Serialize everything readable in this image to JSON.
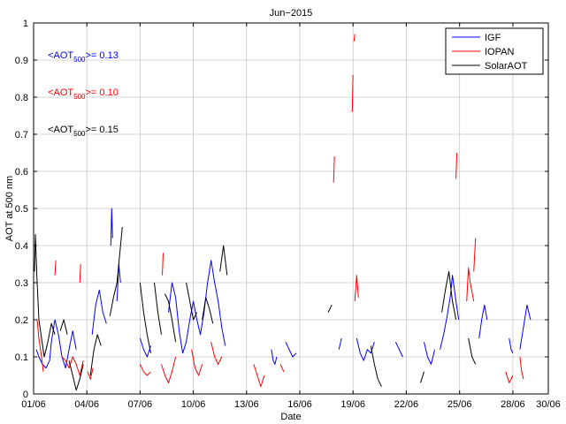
{
  "chart_data": {
    "type": "line",
    "title": "Jun−2015",
    "xlabel": "Date",
    "ylabel": "AOT at 500 nm",
    "xlim": [
      1,
      30
    ],
    "ylim": [
      0,
      1
    ],
    "grid": true,
    "legend_position": "top-right",
    "x_tick_values": [
      1,
      4,
      7,
      10,
      13,
      16,
      19,
      22,
      25,
      28,
      30
    ],
    "x_tick_labels": [
      "01/06",
      "04/06",
      "07/06",
      "10/06",
      "13/06",
      "16/06",
      "19/06",
      "22/06",
      "25/06",
      "28/06",
      "30/06"
    ],
    "y_tick_values": [
      0,
      0.1,
      0.2,
      0.3,
      0.4,
      0.5,
      0.6,
      0.7,
      0.8,
      0.9,
      1
    ],
    "y_tick_labels": [
      "0",
      "0.1",
      "0.2",
      "0.3",
      "0.4",
      "0.5",
      "0.6",
      "0.7",
      "0.8",
      "0.9",
      "1"
    ],
    "annotations": [
      {
        "prefix": "<AOT",
        "sub": "500",
        "suffix": ">= 0.13",
        "color": "#0000ff",
        "x": 1.8,
        "y": 0.905
      },
      {
        "prefix": "<AOT",
        "sub": "500",
        "suffix": ">= 0.10",
        "color": "#ff0000",
        "x": 1.8,
        "y": 0.805
      },
      {
        "prefix": "<AOT",
        "sub": "500",
        "suffix": ">= 0.15",
        "color": "#000000",
        "x": 1.8,
        "y": 0.705
      }
    ],
    "series": [
      {
        "name": "IGF",
        "color": "#0000ff",
        "segments": [
          [
            [
              1.15,
              0.12
            ],
            [
              1.3,
              0.1
            ],
            [
              1.5,
              0.08
            ],
            [
              1.7,
              0.07
            ],
            [
              1.9,
              0.09
            ],
            [
              2.0,
              0.14
            ],
            [
              2.2,
              0.2
            ],
            [
              2.4,
              0.16
            ],
            [
              2.6,
              0.1
            ],
            [
              2.8,
              0.07
            ],
            [
              3.0,
              0.12
            ],
            [
              3.2,
              0.17
            ],
            [
              3.4,
              0.12
            ]
          ],
          [
            [
              4.3,
              0.16
            ],
            [
              4.5,
              0.24
            ],
            [
              4.7,
              0.28
            ],
            [
              4.9,
              0.22
            ],
            [
              5.1,
              0.19
            ]
          ],
          [
            [
              5.35,
              0.4
            ],
            [
              5.4,
              0.5
            ],
            [
              5.45,
              0.42
            ]
          ],
          [
            [
              5.7,
              0.25
            ],
            [
              5.8,
              0.35
            ],
            [
              5.9,
              0.3
            ]
          ],
          [
            [
              7.0,
              0.15
            ],
            [
              7.2,
              0.12
            ],
            [
              7.4,
              0.1
            ],
            [
              7.6,
              0.13
            ]
          ],
          [
            [
              8.6,
              0.22
            ],
            [
              8.8,
              0.3
            ],
            [
              9.0,
              0.26
            ],
            [
              9.2,
              0.17
            ],
            [
              9.4,
              0.11
            ],
            [
              9.6,
              0.14
            ],
            [
              9.8,
              0.2
            ],
            [
              10.0,
              0.25
            ],
            [
              10.2,
              0.2
            ],
            [
              10.4,
              0.16
            ],
            [
              10.6,
              0.22
            ],
            [
              10.8,
              0.3
            ],
            [
              11.0,
              0.36
            ],
            [
              11.2,
              0.3
            ],
            [
              11.4,
              0.25
            ],
            [
              11.6,
              0.18
            ],
            [
              11.8,
              0.13
            ]
          ],
          [
            [
              14.4,
              0.12
            ],
            [
              14.5,
              0.09
            ],
            [
              14.6,
              0.08
            ],
            [
              14.7,
              0.1
            ]
          ],
          [
            [
              15.2,
              0.14
            ],
            [
              15.4,
              0.12
            ],
            [
              15.6,
              0.1
            ],
            [
              15.8,
              0.11
            ]
          ],
          [
            [
              18.2,
              0.12
            ],
            [
              18.35,
              0.15
            ]
          ],
          [
            [
              19.2,
              0.15
            ],
            [
              19.4,
              0.11
            ],
            [
              19.6,
              0.09
            ],
            [
              19.8,
              0.12
            ],
            [
              20.0,
              0.11
            ],
            [
              20.2,
              0.14
            ]
          ],
          [
            [
              21.4,
              0.14
            ],
            [
              21.6,
              0.12
            ],
            [
              21.8,
              0.1
            ]
          ],
          [
            [
              23.0,
              0.14
            ],
            [
              23.2,
              0.1
            ],
            [
              23.4,
              0.08
            ],
            [
              23.6,
              0.12
            ]
          ],
          [
            [
              23.9,
              0.12
            ],
            [
              24.1,
              0.16
            ],
            [
              24.3,
              0.21
            ],
            [
              24.5,
              0.27
            ],
            [
              24.6,
              0.32
            ],
            [
              24.8,
              0.25
            ],
            [
              24.95,
              0.2
            ]
          ],
          [
            [
              26.1,
              0.15
            ],
            [
              26.25,
              0.2
            ],
            [
              26.4,
              0.24
            ],
            [
              26.55,
              0.2
            ]
          ],
          [
            [
              27.8,
              0.15
            ],
            [
              27.9,
              0.12
            ],
            [
              28.0,
              0.11
            ]
          ],
          [
            [
              28.4,
              0.12
            ],
            [
              28.6,
              0.18
            ],
            [
              28.8,
              0.24
            ],
            [
              29.0,
              0.2
            ]
          ]
        ]
      },
      {
        "name": "IOPAN",
        "color": "#ff0000",
        "segments": [
          [
            [
              1.2,
              0.2
            ],
            [
              1.3,
              0.15
            ],
            [
              1.45,
              0.1
            ],
            [
              1.55,
              0.06
            ]
          ],
          [
            [
              2.6,
              0.1
            ],
            [
              2.8,
              0.09
            ],
            [
              3.0,
              0.07
            ],
            [
              3.2,
              0.1
            ],
            [
              3.4,
              0.08
            ],
            [
              3.6,
              0.05
            ],
            [
              3.8,
              0.09
            ]
          ],
          [
            [
              4.05,
              0.06
            ],
            [
              4.2,
              0.04
            ],
            [
              4.35,
              0.07
            ]
          ],
          [
            [
              2.2,
              0.32
            ],
            [
              2.25,
              0.36
            ]
          ],
          [
            [
              3.6,
              0.3
            ],
            [
              3.65,
              0.35
            ]
          ],
          [
            [
              7.0,
              0.08
            ],
            [
              7.2,
              0.06
            ],
            [
              7.4,
              0.05
            ],
            [
              7.6,
              0.06
            ]
          ],
          [
            [
              8.2,
              0.08
            ],
            [
              8.4,
              0.05
            ],
            [
              8.6,
              0.03
            ],
            [
              8.8,
              0.06
            ],
            [
              9.0,
              0.1
            ]
          ],
          [
            [
              8.25,
              0.32
            ],
            [
              8.3,
              0.38
            ]
          ],
          [
            [
              9.9,
              0.12
            ],
            [
              10.1,
              0.07
            ],
            [
              10.3,
              0.05
            ],
            [
              10.5,
              0.08
            ]
          ],
          [
            [
              11.0,
              0.14
            ],
            [
              11.2,
              0.1
            ],
            [
              11.4,
              0.08
            ],
            [
              11.6,
              0.1
            ]
          ],
          [
            [
              13.4,
              0.08
            ],
            [
              13.6,
              0.05
            ],
            [
              13.8,
              0.02
            ],
            [
              14.0,
              0.05
            ]
          ],
          [
            [
              14.9,
              0.08
            ],
            [
              15.1,
              0.06
            ]
          ],
          [
            [
              17.9,
              0.57
            ],
            [
              17.95,
              0.64
            ]
          ],
          [
            [
              18.95,
              0.76
            ],
            [
              19.0,
              0.86
            ]
          ],
          [
            [
              19.05,
              0.95
            ],
            [
              19.1,
              0.97
            ]
          ],
          [
            [
              19.1,
              0.25
            ],
            [
              19.2,
              0.32
            ],
            [
              19.3,
              0.26
            ]
          ],
          [
            [
              24.8,
              0.58
            ],
            [
              24.85,
              0.65
            ]
          ],
          [
            [
              25.4,
              0.25
            ],
            [
              25.5,
              0.34
            ],
            [
              25.6,
              0.3
            ],
            [
              25.8,
              0.25
            ]
          ],
          [
            [
              25.8,
              0.33
            ],
            [
              25.9,
              0.42
            ]
          ],
          [
            [
              27.6,
              0.06
            ],
            [
              27.8,
              0.03
            ],
            [
              28.0,
              0.05
            ]
          ],
          [
            [
              28.4,
              0.1
            ],
            [
              28.5,
              0.06
            ],
            [
              28.6,
              0.04
            ]
          ]
        ]
      },
      {
        "name": "SolarAOT",
        "color": "#000000",
        "segments": [
          [
            [
              1.05,
              0.33
            ],
            [
              1.1,
              0.43
            ],
            [
              1.2,
              0.3
            ],
            [
              1.3,
              0.2
            ],
            [
              1.45,
              0.15
            ],
            [
              1.6,
              0.1
            ],
            [
              1.8,
              0.14
            ],
            [
              2.0,
              0.19
            ],
            [
              2.2,
              0.16
            ]
          ],
          [
            [
              2.5,
              0.17
            ],
            [
              2.7,
              0.2
            ],
            [
              2.9,
              0.16
            ]
          ],
          [
            [
              3.0,
              0.09
            ],
            [
              3.2,
              0.05
            ],
            [
              3.4,
              0.01
            ],
            [
              3.6,
              0.04
            ],
            [
              3.8,
              0.08
            ]
          ],
          [
            [
              4.2,
              0.05
            ],
            [
              4.4,
              0.12
            ],
            [
              4.6,
              0.16
            ],
            [
              4.8,
              0.13
            ]
          ],
          [
            [
              5.3,
              0.21
            ],
            [
              5.5,
              0.26
            ],
            [
              5.7,
              0.3
            ],
            [
              5.9,
              0.4
            ],
            [
              6.0,
              0.45
            ]
          ],
          [
            [
              7.0,
              0.3
            ],
            [
              7.2,
              0.22
            ],
            [
              7.4,
              0.16
            ],
            [
              7.6,
              0.11
            ]
          ],
          [
            [
              7.8,
              0.3
            ],
            [
              8.0,
              0.22
            ],
            [
              8.2,
              0.16
            ]
          ],
          [
            [
              8.4,
              0.27
            ],
            [
              8.6,
              0.25
            ],
            [
              8.8,
              0.2
            ],
            [
              9.0,
              0.14
            ]
          ],
          [
            [
              9.6,
              0.3
            ],
            [
              9.8,
              0.25
            ],
            [
              10.0,
              0.2
            ],
            [
              10.2,
              0.22
            ]
          ],
          [
            [
              10.5,
              0.2
            ],
            [
              10.7,
              0.26
            ],
            [
              10.9,
              0.23
            ],
            [
              11.1,
              0.19
            ]
          ],
          [
            [
              11.5,
              0.33
            ],
            [
              11.7,
              0.4
            ],
            [
              11.9,
              0.32
            ]
          ],
          [
            [
              17.6,
              0.22
            ],
            [
              17.8,
              0.24
            ]
          ],
          [
            [
              20.0,
              0.13
            ],
            [
              20.2,
              0.08
            ],
            [
              20.4,
              0.04
            ],
            [
              20.6,
              0.02
            ]
          ],
          [
            [
              22.8,
              0.03
            ],
            [
              23.0,
              0.06
            ]
          ],
          [
            [
              24.0,
              0.22
            ],
            [
              24.2,
              0.28
            ],
            [
              24.4,
              0.33
            ],
            [
              24.6,
              0.25
            ],
            [
              24.8,
              0.2
            ]
          ],
          [
            [
              25.5,
              0.15
            ],
            [
              25.7,
              0.1
            ],
            [
              25.9,
              0.08
            ]
          ]
        ]
      }
    ]
  }
}
